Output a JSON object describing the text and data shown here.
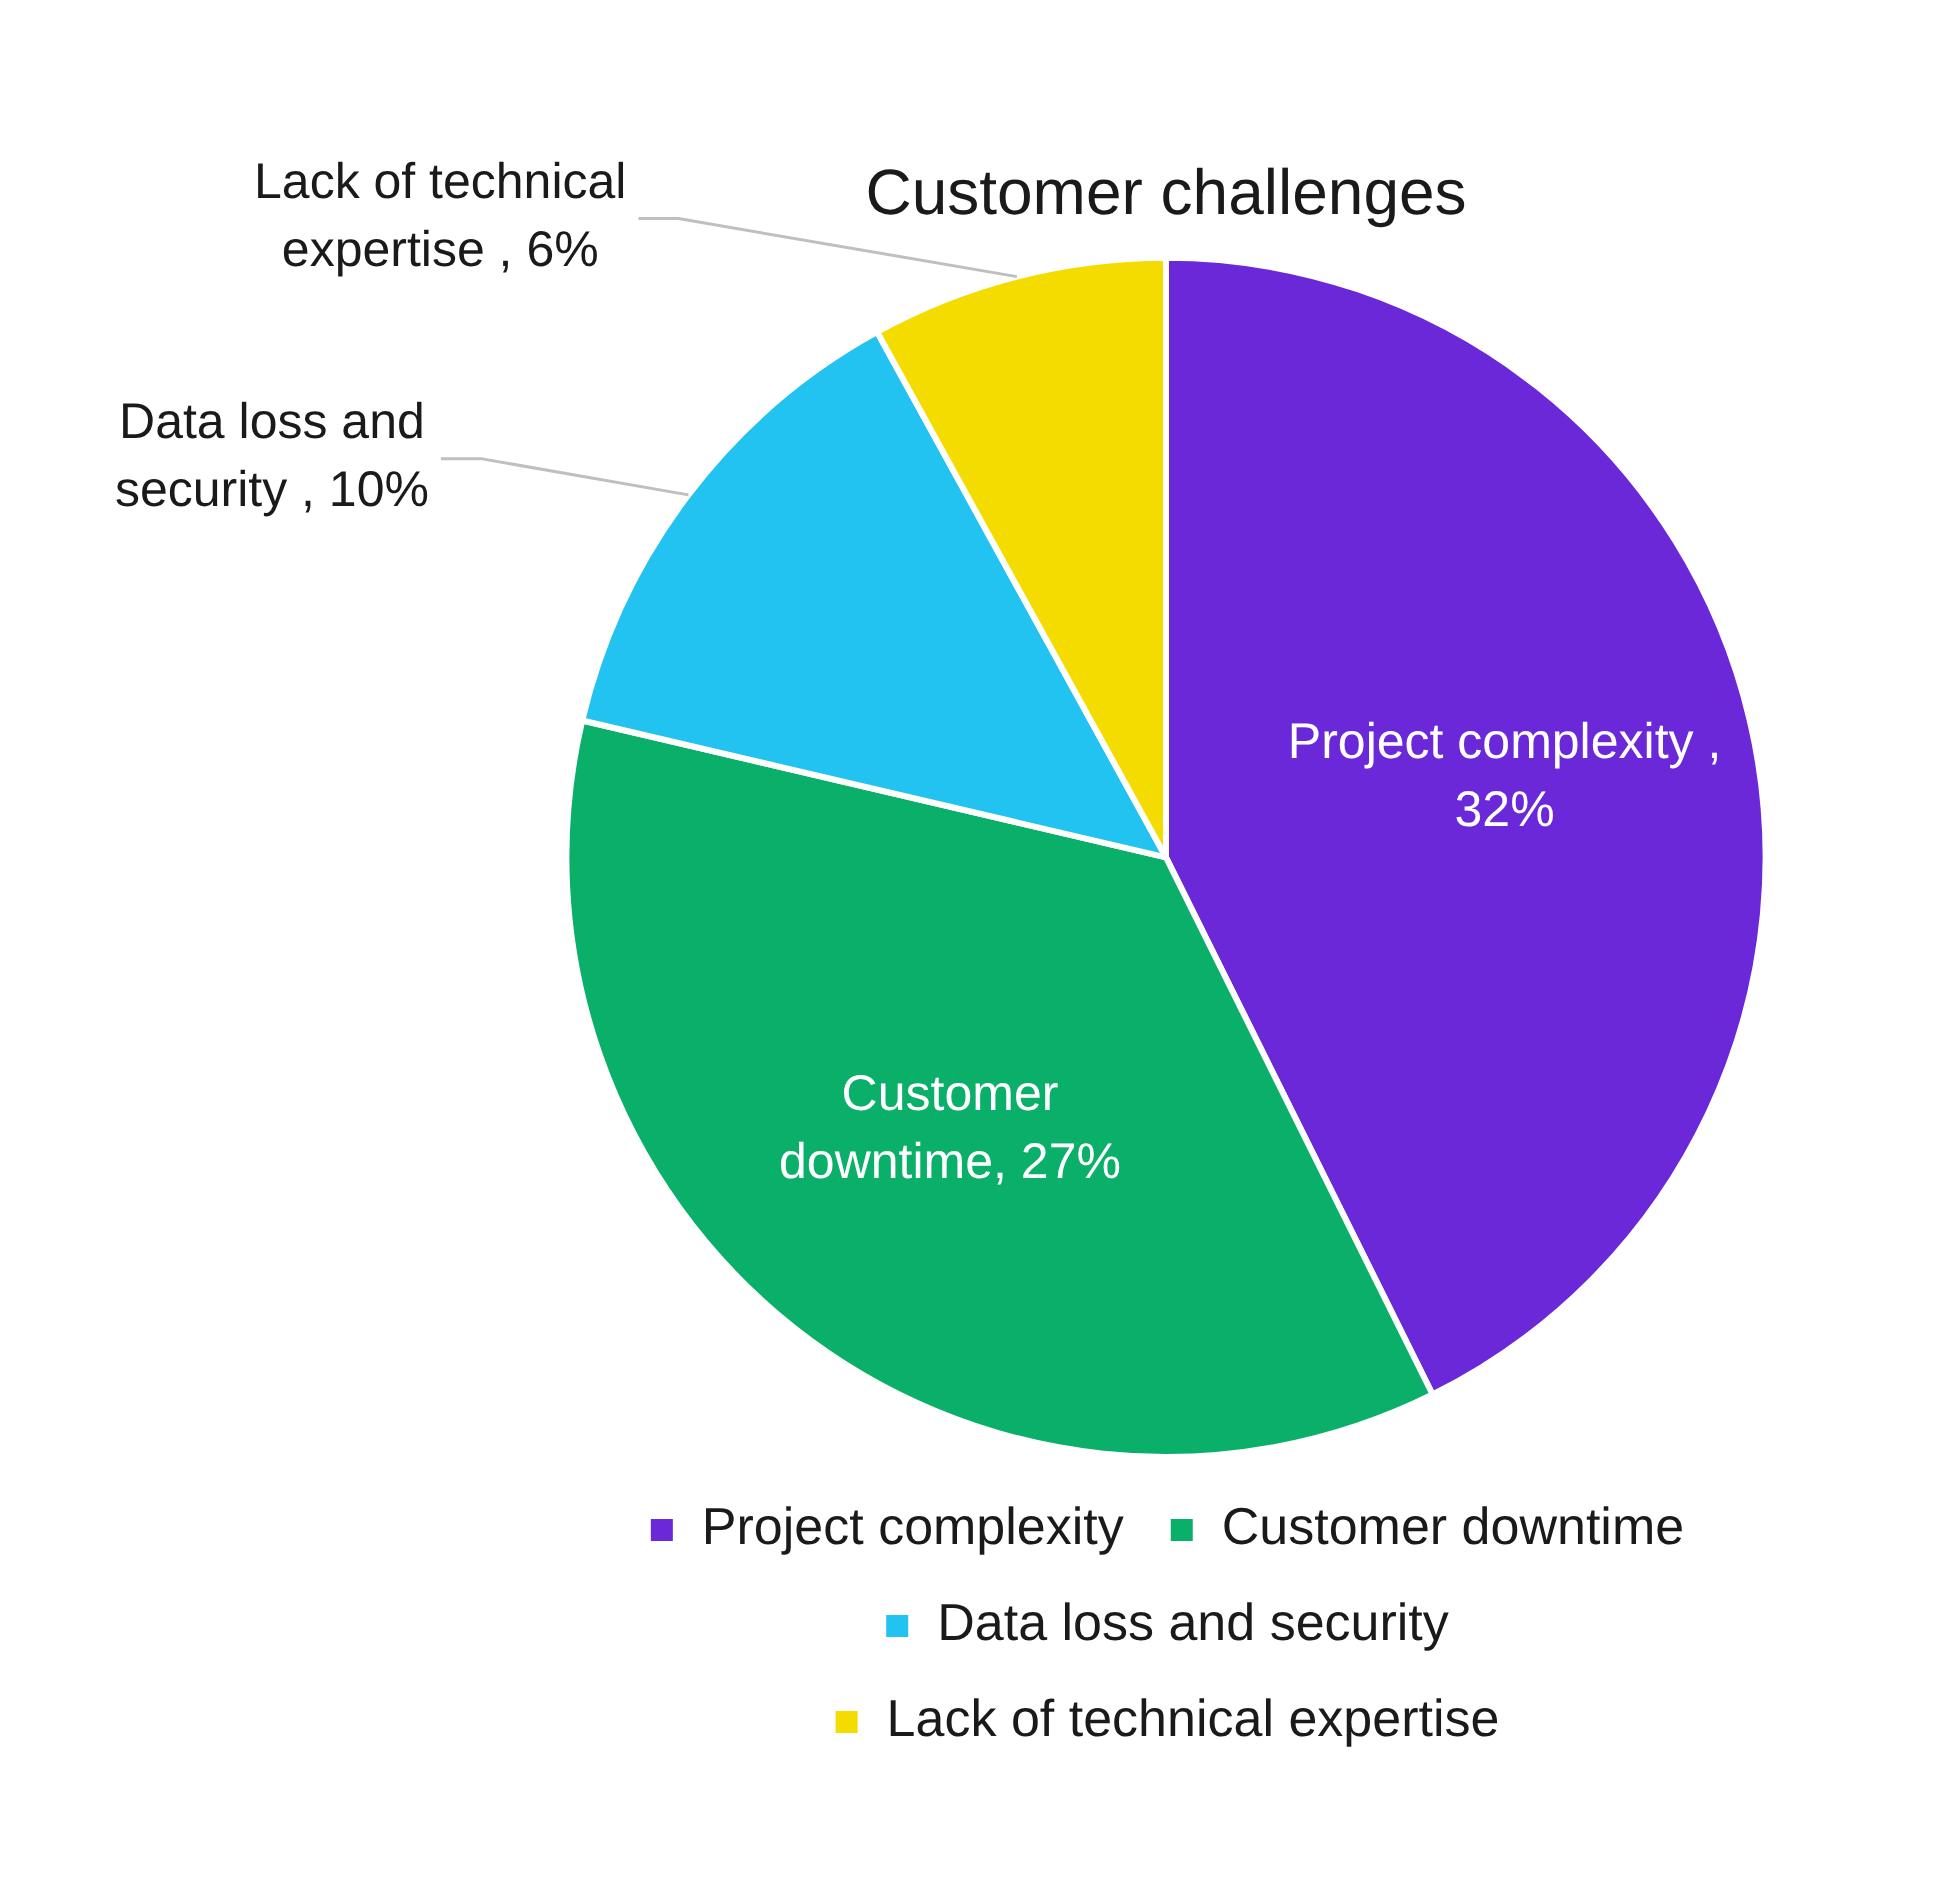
{
  "chart_data": {
    "type": "pie",
    "title": "Customer challenges",
    "categories": [
      "Project complexity",
      "Customer downtime",
      "Data loss and security",
      "Lack of technical expertise"
    ],
    "values": [
      32,
      27,
      10,
      6
    ],
    "colors": [
      "#6a28d8",
      "#0aaf6a",
      "#22c3f0",
      "#f5dc00"
    ],
    "value_labels": [
      "Project complexity , 32%",
      "Customer downtime, 27%",
      "Data loss and security , 10%",
      "Lack of technical expertise , 6%"
    ],
    "legend": "bottom"
  }
}
